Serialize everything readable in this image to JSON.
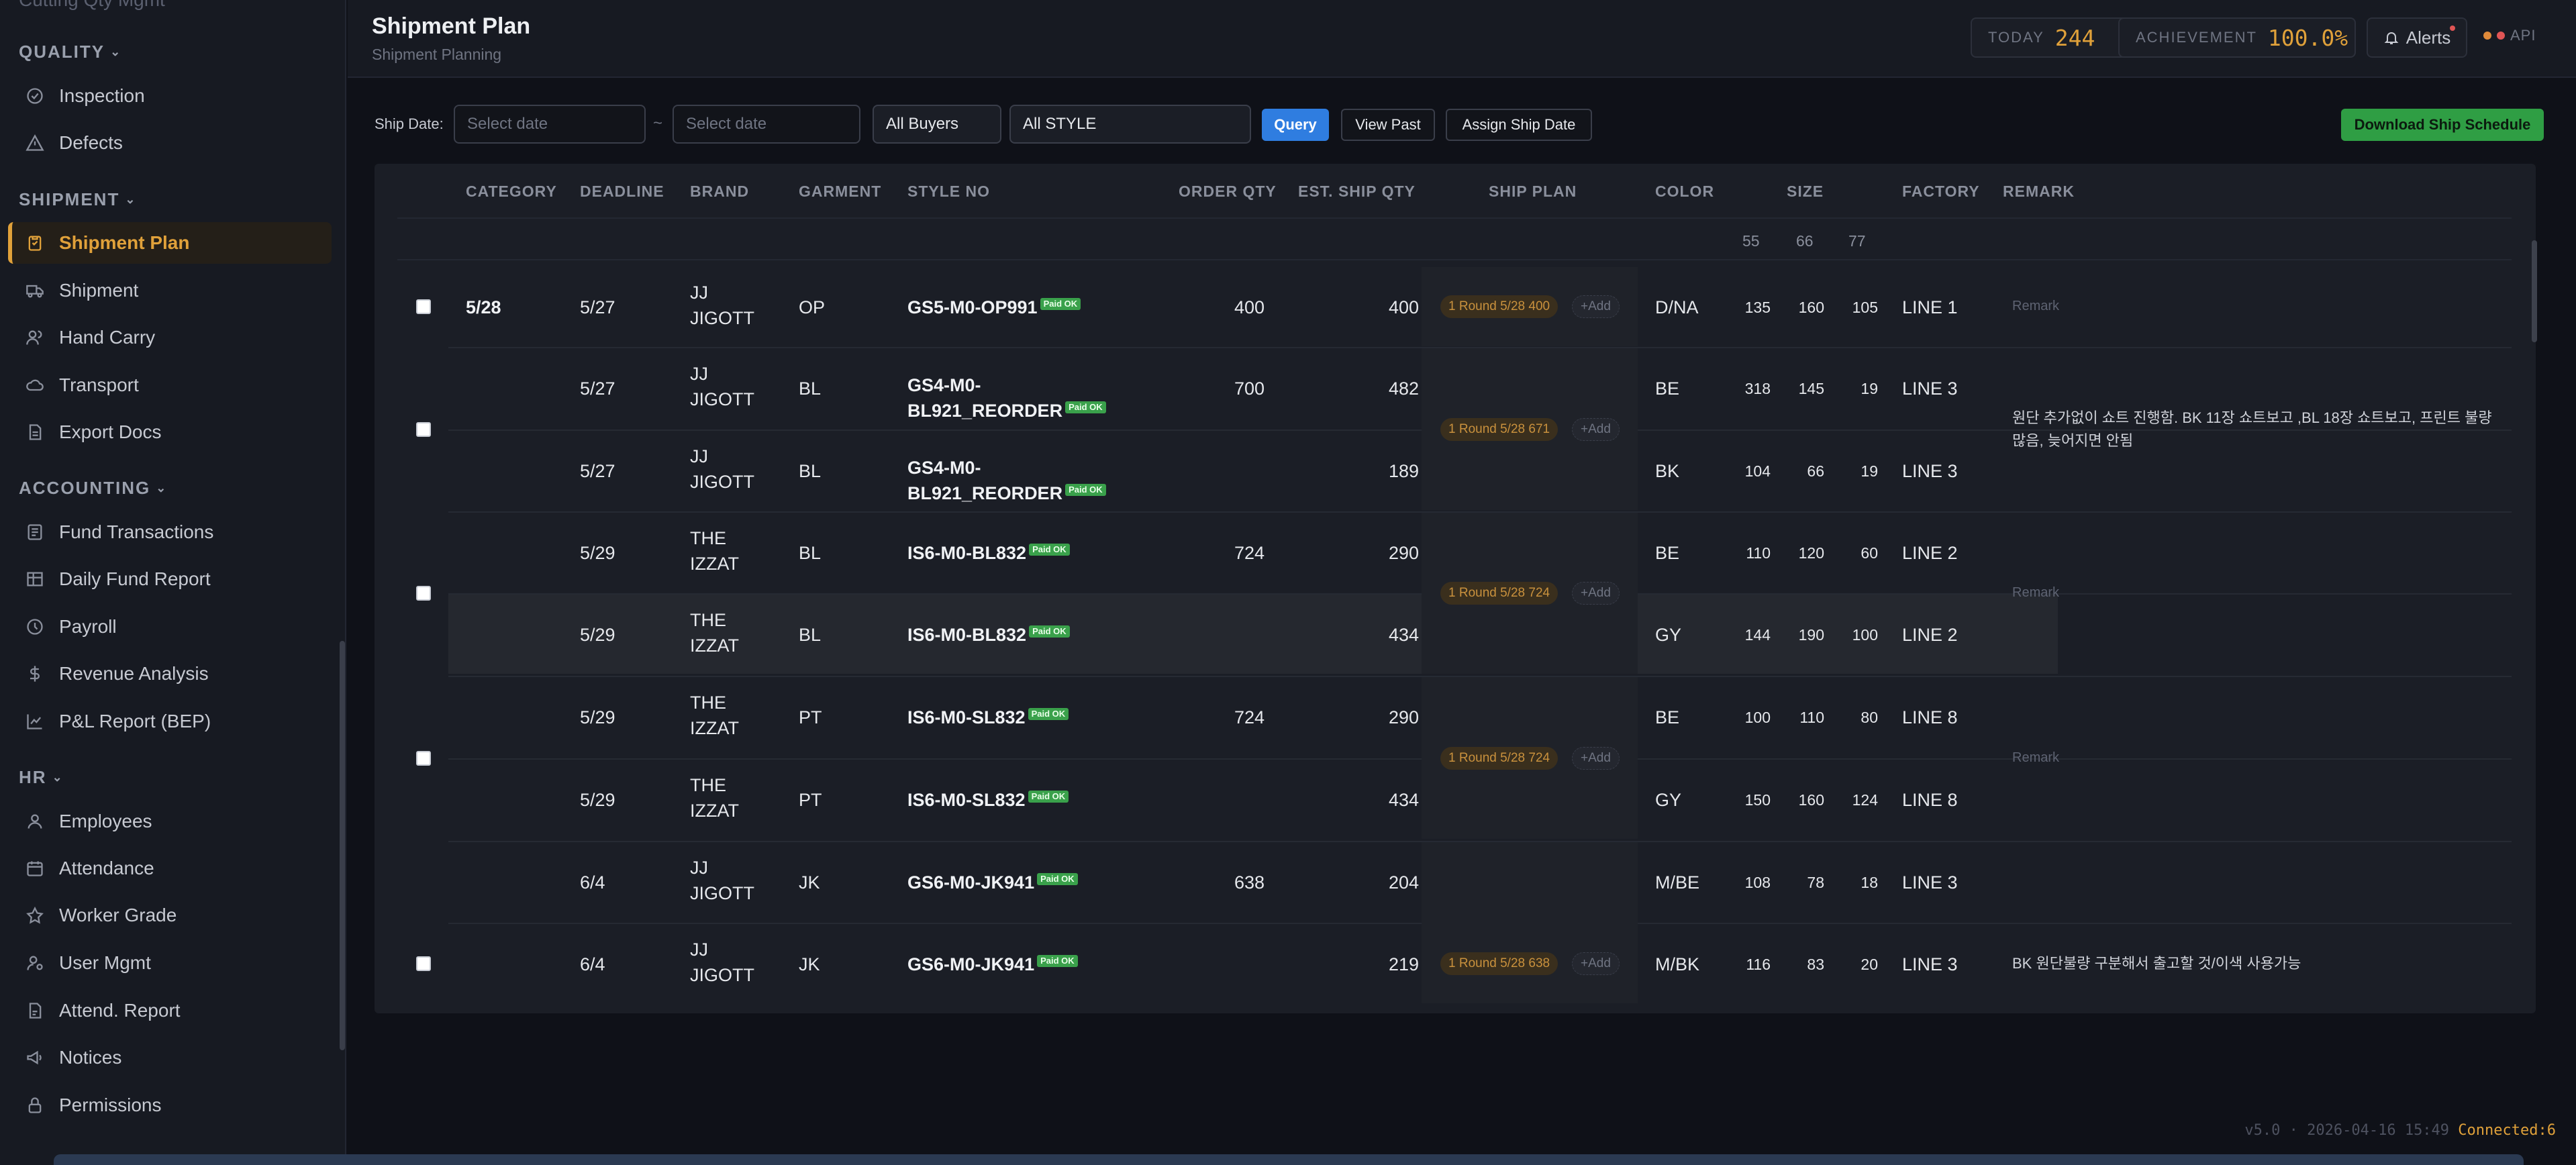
{
  "sidebar": {
    "cut_item": "Cutting Qty Mgmt",
    "sections": [
      {
        "label": "QUALITY",
        "items": [
          {
            "label": "Inspection",
            "icon": "check-circle-icon"
          },
          {
            "label": "Defects",
            "icon": "warning-icon"
          }
        ]
      },
      {
        "label": "SHIPMENT",
        "items": [
          {
            "label": "Shipment Plan",
            "icon": "clipboard-icon"
          },
          {
            "label": "Shipment",
            "icon": "truck-icon"
          },
          {
            "label": "Hand Carry",
            "icon": "users-icon"
          },
          {
            "label": "Transport",
            "icon": "cloud-icon"
          },
          {
            "label": "Export Docs",
            "icon": "document-icon"
          }
        ]
      },
      {
        "label": "ACCOUNTING",
        "items": [
          {
            "label": "Fund Transactions",
            "icon": "list-icon"
          },
          {
            "label": "Daily Fund Report",
            "icon": "table-icon"
          },
          {
            "label": "Payroll",
            "icon": "clock-icon"
          },
          {
            "label": "Revenue Analysis",
            "icon": "dollar-icon"
          },
          {
            "label": "P&L Report (BEP)",
            "icon": "chart-icon"
          }
        ]
      },
      {
        "label": "HR",
        "items": [
          {
            "label": "Employees",
            "icon": "user-icon"
          },
          {
            "label": "Attendance",
            "icon": "calendar-icon"
          },
          {
            "label": "Worker Grade",
            "icon": "star-icon"
          },
          {
            "label": "User Mgmt",
            "icon": "user-cog-icon"
          },
          {
            "label": "Attend. Report",
            "icon": "report-icon"
          },
          {
            "label": "Notices",
            "icon": "megaphone-icon"
          },
          {
            "label": "Permissions",
            "icon": "lock-icon"
          }
        ]
      }
    ]
  },
  "header": {
    "title": "Shipment Plan",
    "subtitle": "Shipment Planning",
    "today_label": "TODAY",
    "today_value": "244",
    "achievement_label": "ACHIEVEMENT",
    "achievement_value": "100.0%",
    "alerts_label": "Alerts",
    "api_label": "API"
  },
  "filters": {
    "ship_date_label": "Ship Date:",
    "date_from_placeholder": "Select date",
    "date_sep": "~",
    "date_to_placeholder": "Select date",
    "buyers": "All Buyers",
    "style": "All STYLE",
    "query": "Query",
    "view_past": "View Past",
    "assign": "Assign Ship Date",
    "download": "Download Ship Schedule"
  },
  "table": {
    "headers": {
      "category": "CATEGORY",
      "deadline": "DEADLINE",
      "brand": "BRAND",
      "garment": "GARMENT",
      "style_no": "STYLE NO",
      "order_qty": "ORDER QTY",
      "est_ship_qty": "EST. SHIP QTY",
      "ship_plan": "SHIP PLAN",
      "color": "COLOR",
      "size": "SIZE",
      "factory": "FACTORY",
      "remark": "REMARK"
    },
    "sizes": [
      "55",
      "66",
      "77"
    ],
    "paid_badge": "Paid OK",
    "add_label": "+Add",
    "remark_placeholder": "Remark",
    "rows": [
      {
        "category": "5/28",
        "deadline": "5/27",
        "brand": "JJ JIGOTT",
        "garment": "OP",
        "style": "GS5-M0-OP991",
        "order": "400",
        "est": "400",
        "color": "D/NA",
        "s55": "135",
        "s66": "160",
        "s77": "105",
        "factory": "LINE 1"
      },
      {
        "category": "",
        "deadline": "5/27",
        "brand": "JJ JIGOTT",
        "garment": "BL",
        "style": "GS4-M0-BL921_REORDER",
        "order": "700",
        "est": "482",
        "color": "BE",
        "s55": "318",
        "s66": "145",
        "s77": "19",
        "factory": "LINE 3"
      },
      {
        "category": "",
        "deadline": "5/27",
        "brand": "JJ JIGOTT",
        "garment": "BL",
        "style": "GS4-M0-BL921_REORDER",
        "order": "",
        "est": "189",
        "color": "BK",
        "s55": "104",
        "s66": "66",
        "s77": "19",
        "factory": "LINE 3"
      },
      {
        "category": "",
        "deadline": "5/29",
        "brand": "THE IZZAT",
        "garment": "BL",
        "style": "IS6-M0-BL832",
        "order": "724",
        "est": "290",
        "color": "BE",
        "s55": "110",
        "s66": "120",
        "s77": "60",
        "factory": "LINE 2"
      },
      {
        "category": "",
        "deadline": "5/29",
        "brand": "THE IZZAT",
        "garment": "BL",
        "style": "IS6-M0-BL832",
        "order": "",
        "est": "434",
        "color": "GY",
        "s55": "144",
        "s66": "190",
        "s77": "100",
        "factory": "LINE 2"
      },
      {
        "category": "",
        "deadline": "5/29",
        "brand": "THE IZZAT",
        "garment": "PT",
        "style": "IS6-M0-SL832",
        "order": "724",
        "est": "290",
        "color": "BE",
        "s55": "100",
        "s66": "110",
        "s77": "80",
        "factory": "LINE 8"
      },
      {
        "category": "",
        "deadline": "5/29",
        "brand": "THE IZZAT",
        "garment": "PT",
        "style": "IS6-M0-SL832",
        "order": "",
        "est": "434",
        "color": "GY",
        "s55": "150",
        "s66": "160",
        "s77": "124",
        "factory": "LINE 8"
      },
      {
        "category": "",
        "deadline": "6/4",
        "brand": "JJ JIGOTT",
        "garment": "JK",
        "style": "GS6-M0-JK941",
        "order": "638",
        "est": "204",
        "color": "M/BE",
        "s55": "108",
        "s66": "78",
        "s77": "18",
        "factory": "LINE 3"
      },
      {
        "category": "",
        "deadline": "6/4",
        "brand": "JJ JIGOTT",
        "garment": "JK",
        "style": "GS6-M0-JK941",
        "order": "",
        "est": "219",
        "color": "M/BK",
        "s55": "116",
        "s66": "83",
        "s77": "20",
        "factory": "LINE 3"
      }
    ],
    "plans": [
      "1 Round 5/28 400",
      "1 Round 5/28 671",
      "1 Round 5/28 724",
      "1 Round 5/28 724",
      "1 Round 5/28 638"
    ],
    "remarks": {
      "group2": "원단 추가없이 쇼트 진행함. BK 11장 쇼트보고 ,BL 18장 쇼트보고, 프린트 불량 많음, 늦어지면 안됨",
      "group5": "BK 원단불량 구분해서 출고할 것/이색 사용가능"
    }
  },
  "footer": {
    "version": "v5.0 · 2026-04-16 15:49",
    "status": "Connected:6"
  }
}
